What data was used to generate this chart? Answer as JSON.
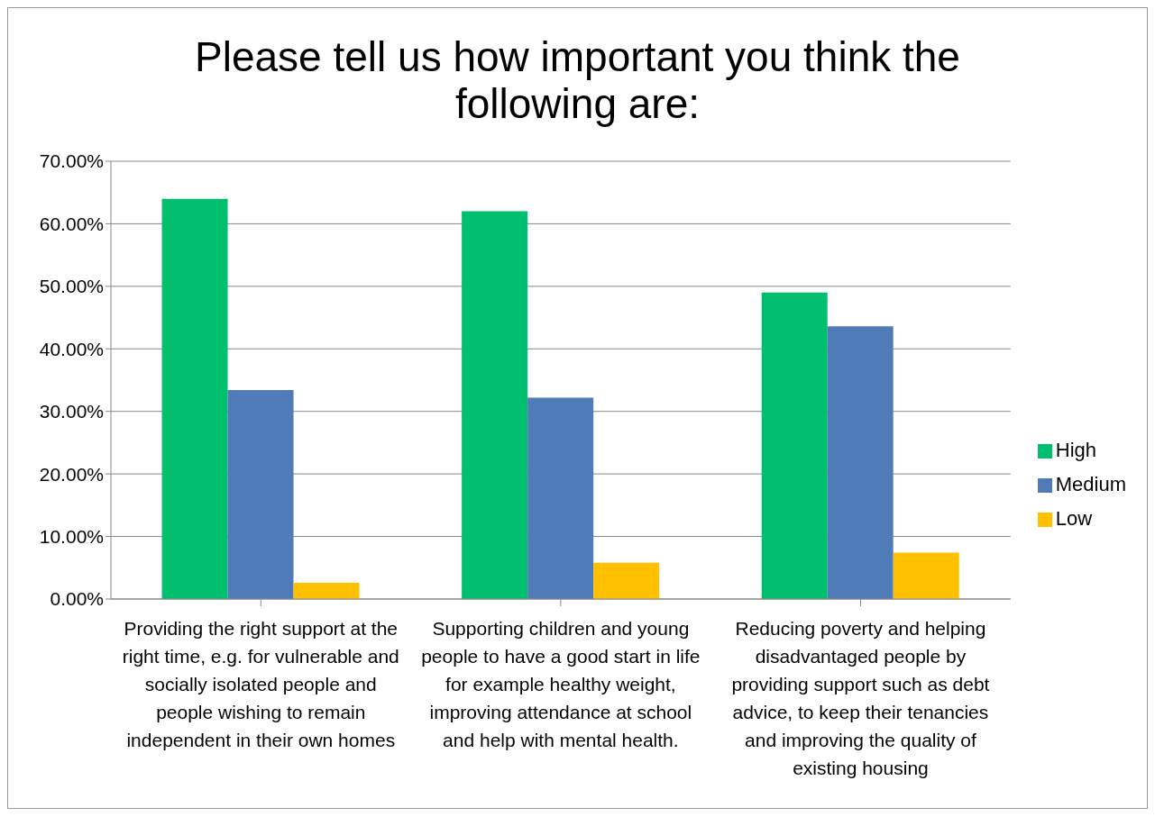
{
  "chart_data": {
    "type": "bar",
    "title": "Please tell us how important you think the following are:",
    "categories": [
      "Providing the right support at the right time, e.g. for vulnerable and socially isolated people and people wishing to remain independent in their own homes",
      "Supporting children and young people to have a good start in life for example healthy weight, improving attendance at school and help with mental health.",
      "Reducing poverty and helping disadvantaged people by providing support such as debt advice, to keep their tenancies and improving the quality of existing housing"
    ],
    "series": [
      {
        "name": "High",
        "color": "#00bf6f",
        "values": [
          64.0,
          62.0,
          49.0
        ]
      },
      {
        "name": "Medium",
        "color": "#4f7bb9",
        "values": [
          33.4,
          32.2,
          43.6
        ]
      },
      {
        "name": "Low",
        "color": "#ffc000",
        "values": [
          2.6,
          5.8,
          7.4
        ]
      }
    ],
    "ylim": [
      0,
      70
    ],
    "yticks": [
      {
        "value": 0,
        "label": "0.00%"
      },
      {
        "value": 10,
        "label": "10.00%"
      },
      {
        "value": 20,
        "label": "20.00%"
      },
      {
        "value": 30,
        "label": "30.00%"
      },
      {
        "value": 40,
        "label": "40.00%"
      },
      {
        "value": 50,
        "label": "50.00%"
      },
      {
        "value": 60,
        "label": "60.00%"
      },
      {
        "value": 70,
        "label": "70.00%"
      }
    ],
    "grid": "y",
    "legend": "right"
  }
}
